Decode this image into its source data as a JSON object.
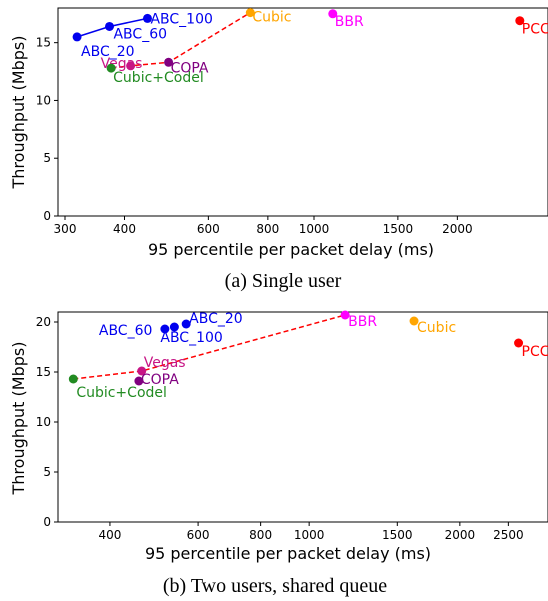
{
  "chart_data": [
    {
      "type": "scatter",
      "caption": "(a) Single user",
      "xlabel": "95 percentile per packet delay (ms)",
      "ylabel": "Throughput (Mbps)",
      "x_scale": "log",
      "xlim": [
        290,
        3100
      ],
      "ylim": [
        0,
        18
      ],
      "x_ticks": [
        300,
        400,
        600,
        800,
        1000,
        1500,
        2000
      ],
      "y_ticks": [
        0,
        5,
        10,
        15
      ],
      "points": [
        {
          "label": "ABC_20",
          "x": 318,
          "y": 15.5,
          "color": "#0000ee"
        },
        {
          "label": "ABC_60",
          "x": 372,
          "y": 16.4,
          "color": "#0000ee"
        },
        {
          "label": "ABC_100",
          "x": 447,
          "y": 17.1,
          "color": "#0000ee"
        },
        {
          "label": "Vegas",
          "x": 412,
          "y": 13.0,
          "color": "#c71585"
        },
        {
          "label": "Cubic+Codel",
          "x": 375,
          "y": 12.8,
          "color": "#228b22"
        },
        {
          "label": "COPA",
          "x": 495,
          "y": 13.3,
          "color": "#800080"
        },
        {
          "label": "Cubic",
          "x": 735,
          "y": 17.6,
          "color": "#ffa500"
        },
        {
          "label": "BBR",
          "x": 1095,
          "y": 17.5,
          "color": "#ff00ff"
        },
        {
          "label": "PCC",
          "x": 2705,
          "y": 16.9,
          "color": "#ff0000"
        }
      ],
      "lines": [
        {
          "style": "solid",
          "color": "#0000ee",
          "through": [
            "ABC_20",
            "ABC_60",
            "ABC_100"
          ]
        },
        {
          "style": "dashed",
          "color": "#ff0000",
          "through": [
            "Cubic+Codel",
            "Vegas",
            "COPA",
            "Cubic"
          ]
        }
      ]
    },
    {
      "type": "scatter",
      "caption": "(b) Two users, shared queue",
      "xlabel": "95 percentile per packet delay (ms)",
      "ylabel": "Throughput (Mbps)",
      "x_scale": "log",
      "xlim": [
        315,
        3000
      ],
      "ylim": [
        0,
        21
      ],
      "x_ticks": [
        400,
        600,
        800,
        1000,
        1500,
        2000,
        2500
      ],
      "y_ticks": [
        0,
        5,
        10,
        15,
        20
      ],
      "points": [
        {
          "label": "ABC_60",
          "x": 515,
          "y": 19.3,
          "color": "#0000ee"
        },
        {
          "label": "ABC_20",
          "x": 568,
          "y": 19.8,
          "color": "#0000ee"
        },
        {
          "label": "ABC_100",
          "x": 538,
          "y": 19.5,
          "color": "#0000ee"
        },
        {
          "label": "Vegas",
          "x": 463,
          "y": 15.1,
          "color": "#c71585"
        },
        {
          "label": "COPA",
          "x": 457,
          "y": 14.1,
          "color": "#800080"
        },
        {
          "label": "Cubic+Codel",
          "x": 338,
          "y": 14.3,
          "color": "#228b22"
        },
        {
          "label": "BBR",
          "x": 1180,
          "y": 20.7,
          "color": "#ff00ff"
        },
        {
          "label": "Cubic",
          "x": 1620,
          "y": 20.1,
          "color": "#ffa500"
        },
        {
          "label": "PCC",
          "x": 2620,
          "y": 17.9,
          "color": "#ff0000"
        }
      ],
      "lines": [
        {
          "style": "dashed",
          "color": "#ff0000",
          "through": [
            "Cubic+Codel",
            "Vegas",
            "BBR"
          ]
        }
      ]
    }
  ]
}
